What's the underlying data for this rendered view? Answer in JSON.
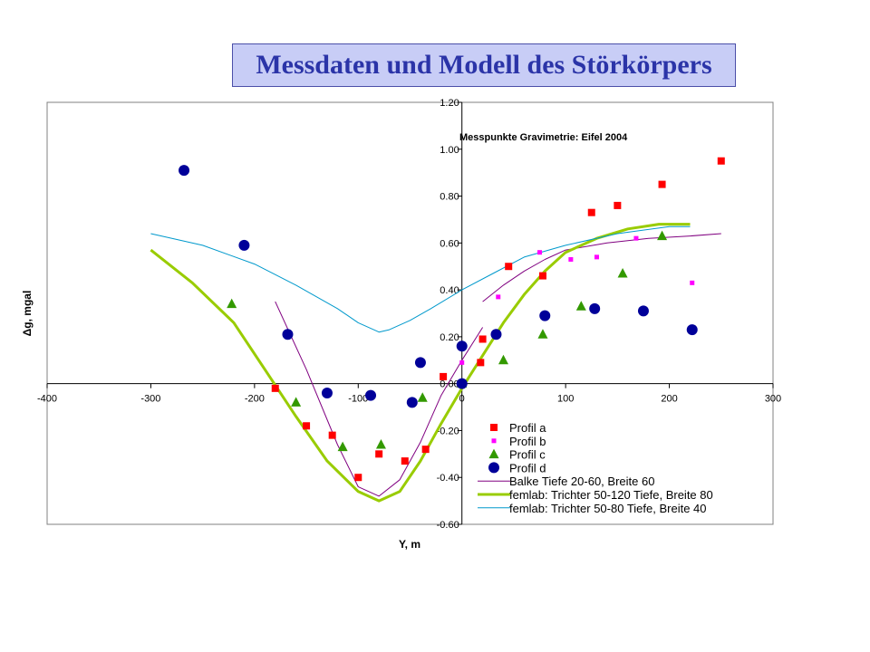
{
  "chart_data": {
    "type": "scatter",
    "title": "Messdaten und Modell des Störkörpers",
    "annotation": "Messpunkte Gravimetrie: Eifel 2004",
    "xlabel": "Y, m",
    "ylabel": "Δg, mgal",
    "xlim": [
      -400,
      300
    ],
    "ylim": [
      -0.6,
      1.2
    ],
    "x_ticks": [
      "-400",
      "-300",
      "-200",
      "-100",
      "0",
      "100",
      "200",
      "300"
    ],
    "y_ticks": [
      "-0.60",
      "-0.40",
      "-0.20",
      "0.00",
      "0.20",
      "0.40",
      "0.60",
      "0.80",
      "1.00",
      "1.20"
    ],
    "grid": false,
    "legend_position": "bottom-right",
    "series": [
      {
        "name": "Profil a",
        "kind": "points",
        "marker": "square",
        "color": "#ff0000",
        "points": [
          [
            -180,
            -0.02
          ],
          [
            -150,
            -0.18
          ],
          [
            -125,
            -0.22
          ],
          [
            -100,
            -0.4
          ],
          [
            -80,
            -0.3
          ],
          [
            -55,
            -0.33
          ],
          [
            -35,
            -0.28
          ],
          [
            -18,
            0.03
          ],
          [
            18,
            0.09
          ],
          [
            20,
            0.19
          ],
          [
            45,
            0.5
          ],
          [
            78,
            0.46
          ],
          [
            125,
            0.73
          ],
          [
            150,
            0.76
          ],
          [
            193,
            0.85
          ],
          [
            250,
            0.95
          ]
        ]
      },
      {
        "name": "Profil b",
        "kind": "points",
        "marker": "small-square",
        "color": "#ff00ff",
        "points": [
          [
            0,
            0.09
          ],
          [
            35,
            0.37
          ],
          [
            75,
            0.56
          ],
          [
            105,
            0.53
          ],
          [
            130,
            0.54
          ],
          [
            168,
            0.62
          ],
          [
            222,
            0.43
          ]
        ]
      },
      {
        "name": "Profil c",
        "kind": "points",
        "marker": "triangle",
        "color": "#339900",
        "points": [
          [
            -222,
            0.34
          ],
          [
            -160,
            -0.08
          ],
          [
            -115,
            -0.27
          ],
          [
            -78,
            -0.26
          ],
          [
            -38,
            -0.06
          ],
          [
            0,
            0.0
          ],
          [
            40,
            0.1
          ],
          [
            78,
            0.21
          ],
          [
            115,
            0.33
          ],
          [
            155,
            0.47
          ],
          [
            193,
            0.63
          ]
        ]
      },
      {
        "name": "Profil d",
        "kind": "points",
        "marker": "circle",
        "color": "#000099",
        "points": [
          [
            -268,
            0.91
          ],
          [
            -210,
            0.59
          ],
          [
            -168,
            0.21
          ],
          [
            -130,
            -0.04
          ],
          [
            -88,
            -0.05
          ],
          [
            -48,
            -0.08
          ],
          [
            -40,
            0.09
          ],
          [
            0,
            0.16
          ],
          [
            0,
            0.0
          ],
          [
            33,
            0.21
          ],
          [
            80,
            0.29
          ],
          [
            128,
            0.32
          ],
          [
            175,
            0.31
          ],
          [
            222,
            0.23
          ]
        ]
      },
      {
        "name": "Balke Tiefe 20-60, Breite 60",
        "kind": "line",
        "color": "#800080",
        "width": 1,
        "points": [
          [
            -180,
            0.35
          ],
          [
            -150,
            0.06
          ],
          [
            -120,
            -0.26
          ],
          [
            -100,
            -0.44
          ],
          [
            -80,
            -0.48
          ],
          [
            -60,
            -0.41
          ],
          [
            -40,
            -0.25
          ],
          [
            -20,
            -0.05
          ],
          [
            0,
            0.1
          ],
          [
            20,
            0.24
          ]
        ]
      },
      {
        "name": "",
        "kind": "line",
        "color": "#800080",
        "width": 1,
        "points": [
          [
            20,
            0.35
          ],
          [
            40,
            0.42
          ],
          [
            60,
            0.48
          ],
          [
            80,
            0.53
          ],
          [
            100,
            0.57
          ],
          [
            140,
            0.6
          ],
          [
            180,
            0.62
          ],
          [
            220,
            0.63
          ],
          [
            250,
            0.64
          ]
        ]
      },
      {
        "name": "femlab: Trichter 50-120 Tiefe, Breite 80",
        "kind": "line",
        "color": "#99cc00",
        "width": 3,
        "points": [
          [
            -300,
            0.57
          ],
          [
            -260,
            0.43
          ],
          [
            -220,
            0.26
          ],
          [
            -190,
            0.06
          ],
          [
            -160,
            -0.14
          ],
          [
            -130,
            -0.33
          ],
          [
            -100,
            -0.46
          ],
          [
            -80,
            -0.5
          ],
          [
            -60,
            -0.46
          ],
          [
            -40,
            -0.33
          ],
          [
            -20,
            -0.17
          ],
          [
            0,
            -0.02
          ],
          [
            20,
            0.12
          ],
          [
            40,
            0.26
          ],
          [
            60,
            0.38
          ],
          [
            80,
            0.48
          ],
          [
            100,
            0.56
          ],
          [
            130,
            0.62
          ],
          [
            160,
            0.66
          ],
          [
            190,
            0.68
          ],
          [
            220,
            0.68
          ]
        ]
      },
      {
        "name": "femlab: Trichter 50-80 Tiefe, Breite 40",
        "kind": "line",
        "color": "#0099cc",
        "width": 1,
        "points": [
          [
            -300,
            0.64
          ],
          [
            -250,
            0.59
          ],
          [
            -200,
            0.51
          ],
          [
            -160,
            0.42
          ],
          [
            -120,
            0.32
          ],
          [
            -100,
            0.26
          ],
          [
            -80,
            0.22
          ],
          [
            -70,
            0.23
          ],
          [
            -50,
            0.27
          ],
          [
            -30,
            0.32
          ],
          [
            0,
            0.4
          ],
          [
            30,
            0.47
          ],
          [
            60,
            0.54
          ],
          [
            100,
            0.59
          ],
          [
            150,
            0.64
          ],
          [
            200,
            0.67
          ],
          [
            220,
            0.67
          ]
        ]
      }
    ]
  }
}
